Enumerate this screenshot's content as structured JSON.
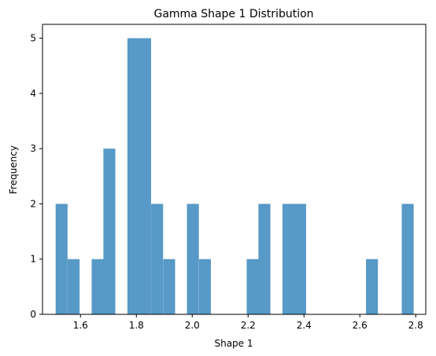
{
  "chart_data": {
    "type": "bar",
    "title": "Gamma Shape 1 Distribution",
    "xlabel": "Shape 1",
    "ylabel": "Frequency",
    "xlim": [
      1.464,
      2.836
    ],
    "ylim": [
      0,
      5.25
    ],
    "x_ticks": [
      "1.6",
      "1.8",
      "2.0",
      "2.2",
      "2.4",
      "2.6",
      "2.8"
    ],
    "x_tick_values": [
      1.6,
      1.8,
      2.0,
      2.2,
      2.4,
      2.6,
      2.8
    ],
    "y_ticks": [
      "0",
      "1",
      "2",
      "3",
      "4",
      "5"
    ],
    "y_tick_values": [
      0,
      1,
      2,
      3,
      4,
      5
    ],
    "grid": false,
    "bar_color": "#5799c7",
    "bin_width": 0.0427,
    "bins": [
      {
        "x0": 1.511,
        "count": 2
      },
      {
        "x0": 1.554,
        "count": 1
      },
      {
        "x0": 1.597,
        "count": 0
      },
      {
        "x0": 1.64,
        "count": 1
      },
      {
        "x0": 1.682,
        "count": 3
      },
      {
        "x0": 1.725,
        "count": 0
      },
      {
        "x0": 1.768,
        "count": 5
      },
      {
        "x0": 1.81,
        "count": 5
      },
      {
        "x0": 1.853,
        "count": 2
      },
      {
        "x0": 1.896,
        "count": 1
      },
      {
        "x0": 1.938,
        "count": 0
      },
      {
        "x0": 1.981,
        "count": 2
      },
      {
        "x0": 2.024,
        "count": 1
      },
      {
        "x0": 2.067,
        "count": 0
      },
      {
        "x0": 2.109,
        "count": 0
      },
      {
        "x0": 2.152,
        "count": 0
      },
      {
        "x0": 2.195,
        "count": 1
      },
      {
        "x0": 2.237,
        "count": 2
      },
      {
        "x0": 2.28,
        "count": 0
      },
      {
        "x0": 2.323,
        "count": 2
      },
      {
        "x0": 2.365,
        "count": 2
      },
      {
        "x0": 2.408,
        "count": 0
      },
      {
        "x0": 2.451,
        "count": 0
      },
      {
        "x0": 2.494,
        "count": 0
      },
      {
        "x0": 2.536,
        "count": 0
      },
      {
        "x0": 2.579,
        "count": 0
      },
      {
        "x0": 2.622,
        "count": 1
      },
      {
        "x0": 2.664,
        "count": 0
      },
      {
        "x0": 2.707,
        "count": 0
      },
      {
        "x0": 2.75,
        "count": 2
      }
    ]
  }
}
